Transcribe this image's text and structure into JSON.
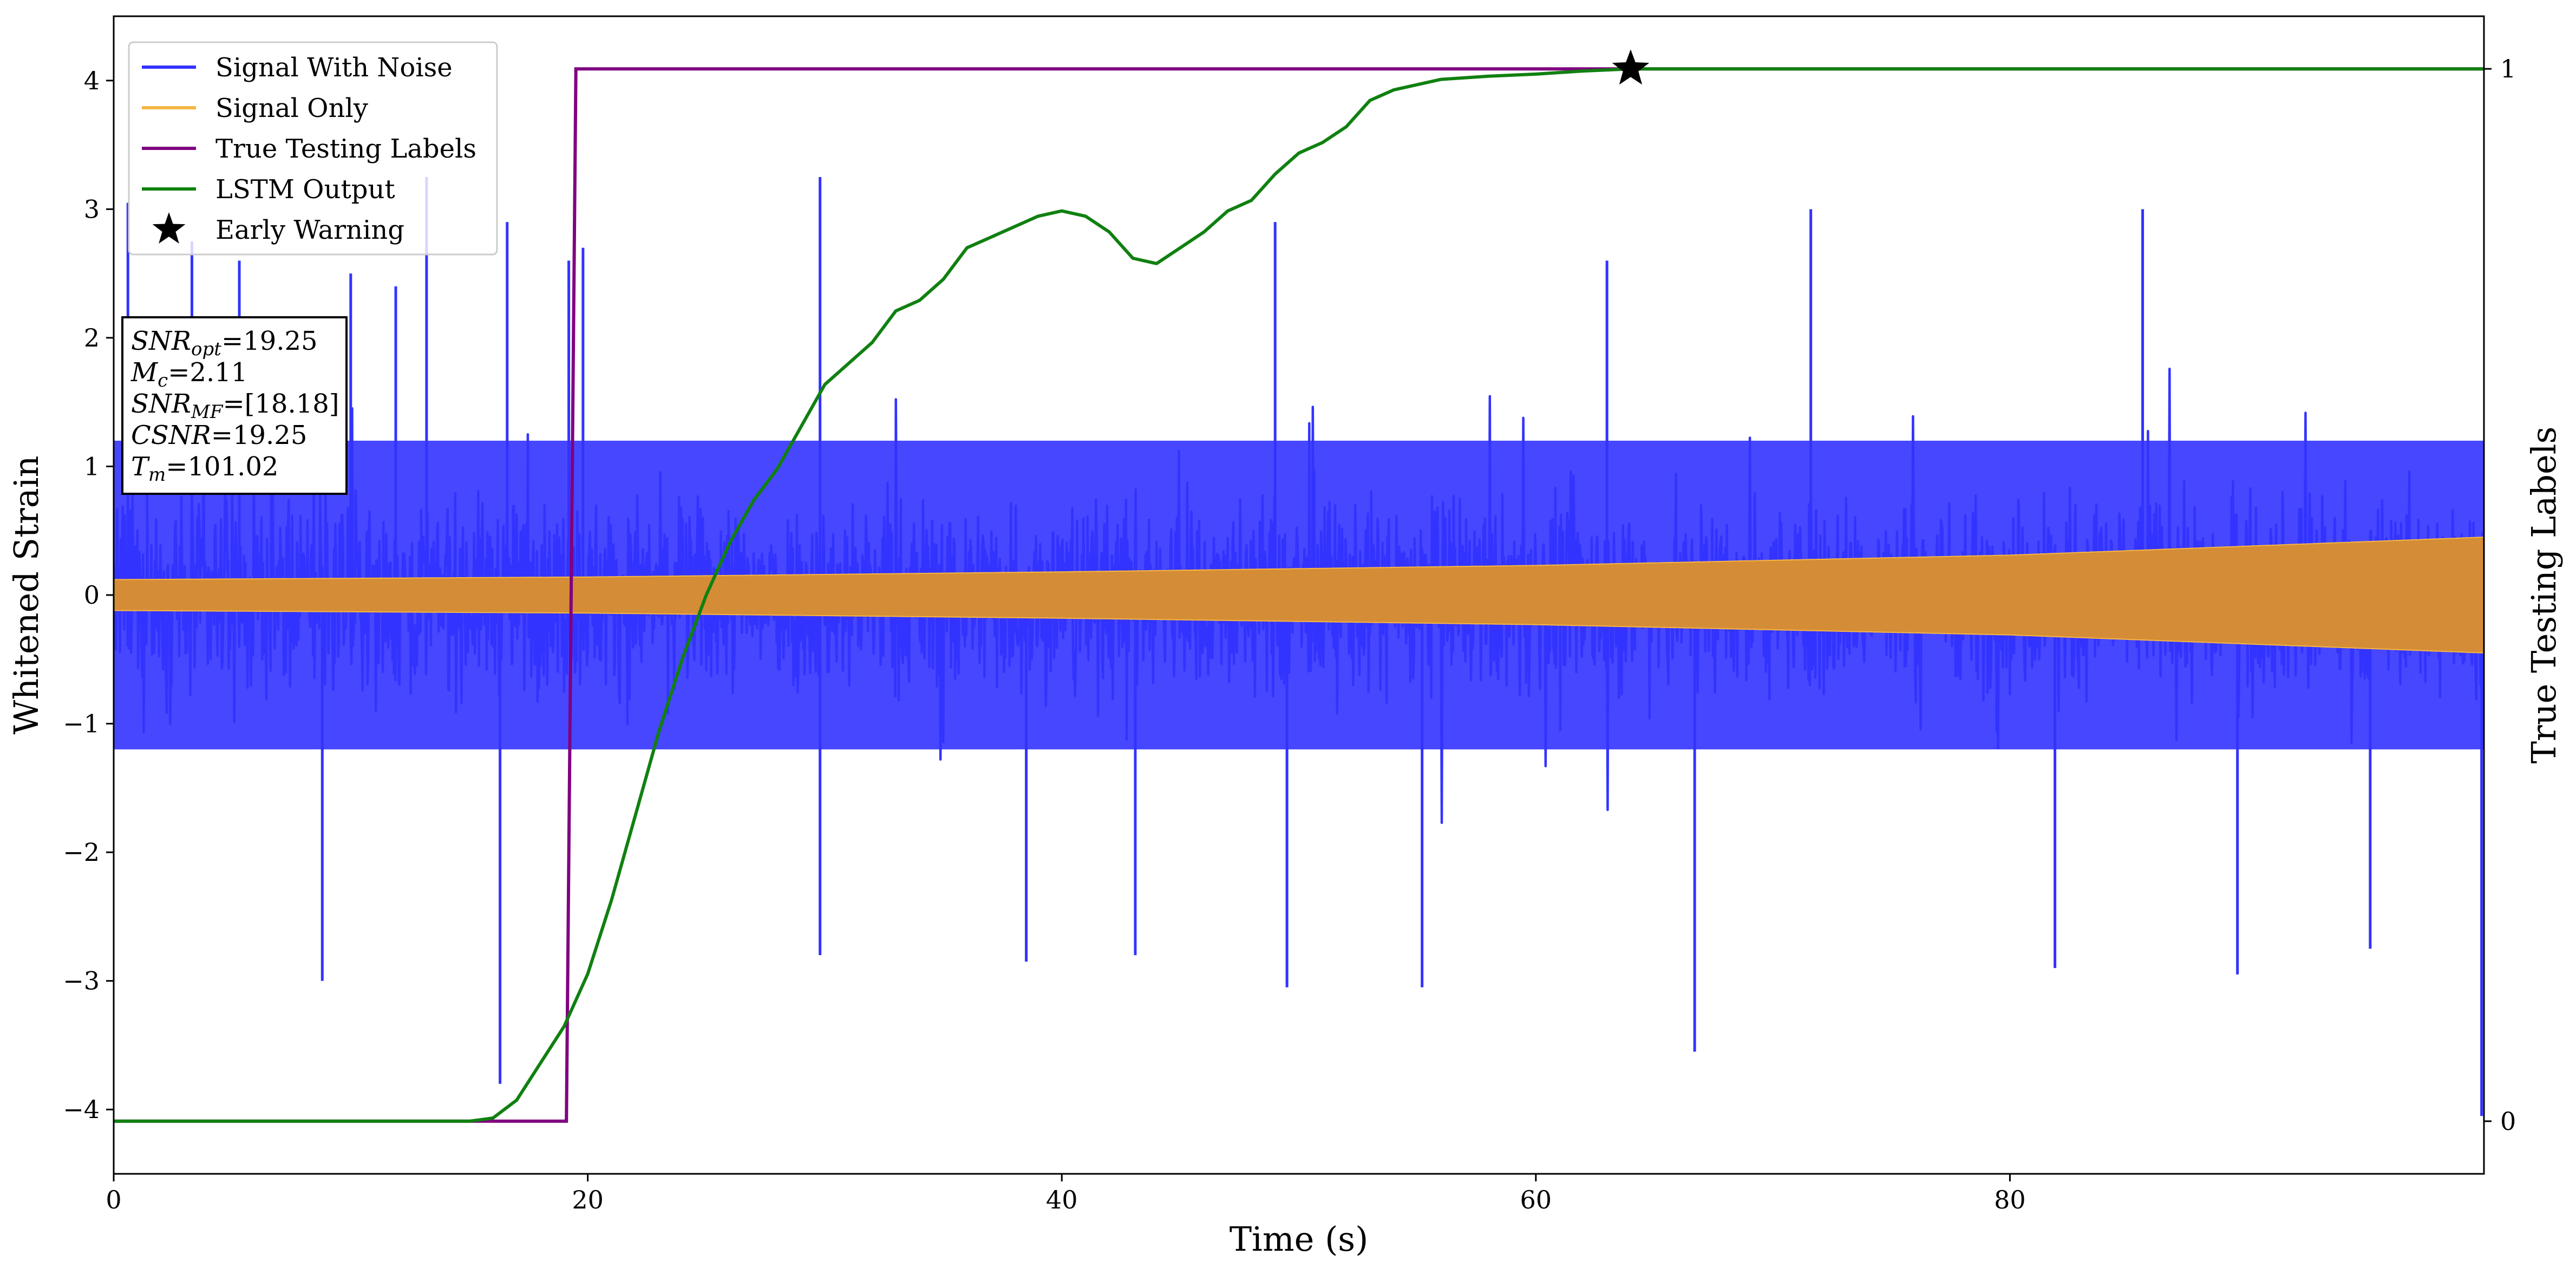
{
  "chart_data": {
    "type": "line",
    "xlabel": "Time (s)",
    "ylabel": "Whitened Strain",
    "ylabel_right": "True Testing Labels",
    "xlim": [
      0,
      100
    ],
    "ylim": [
      -4.5,
      4.5
    ],
    "ylim_right": [
      -0.05,
      1.05
    ],
    "xticks": [
      "0",
      "20",
      "40",
      "60",
      "80"
    ],
    "yticks": [
      "−4",
      "−3",
      "−2",
      "−1",
      "0",
      "1",
      "2",
      "3",
      "4"
    ],
    "yticks_right": [
      "0",
      "1"
    ],
    "grid": false,
    "legend_position": "top-left",
    "colors": {
      "signal_with_noise": "#3333ff",
      "signal_only": "#f5b642",
      "signal_overlap": "#d58c36",
      "true_labels": "#800080",
      "lstm_output": "#108010",
      "early_warning": "#000000"
    },
    "series": [
      {
        "name": "Signal With Noise",
        "kind": "noise-band",
        "axis": "left",
        "typical_envelope": [
          -1.6,
          1.6
        ],
        "spikes": [
          {
            "x": 0.6,
            "y": 3.05
          },
          {
            "x": 3.3,
            "y": 2.75
          },
          {
            "x": 5.3,
            "y": 2.6
          },
          {
            "x": 8.8,
            "y": -3.0
          },
          {
            "x": 10.0,
            "y": 2.5
          },
          {
            "x": 11.9,
            "y": 2.4
          },
          {
            "x": 13.2,
            "y": 3.25
          },
          {
            "x": 16.3,
            "y": -3.8
          },
          {
            "x": 16.6,
            "y": 2.9
          },
          {
            "x": 19.2,
            "y": 2.6
          },
          {
            "x": 19.8,
            "y": 2.7
          },
          {
            "x": 29.8,
            "y": -2.8
          },
          {
            "x": 29.8,
            "y": 3.25
          },
          {
            "x": 38.5,
            "y": -2.85
          },
          {
            "x": 43.1,
            "y": -2.8
          },
          {
            "x": 49.0,
            "y": 2.9
          },
          {
            "x": 49.5,
            "y": -3.05
          },
          {
            "x": 55.2,
            "y": -3.05
          },
          {
            "x": 63.0,
            "y": 2.6
          },
          {
            "x": 66.7,
            "y": -3.55
          },
          {
            "x": 71.6,
            "y": 3.0
          },
          {
            "x": 81.9,
            "y": -2.9
          },
          {
            "x": 85.6,
            "y": 3.0
          },
          {
            "x": 89.6,
            "y": -2.95
          },
          {
            "x": 95.2,
            "y": -2.75
          },
          {
            "x": 99.9,
            "y": -4.05
          }
        ]
      },
      {
        "name": "Signal Only",
        "kind": "chirp-band",
        "axis": "left",
        "x": [
          0,
          20,
          40,
          60,
          80,
          100
        ],
        "amplitude": [
          0.12,
          0.14,
          0.18,
          0.23,
          0.31,
          0.45
        ]
      },
      {
        "name": "True Testing Labels",
        "axis": "right",
        "x": [
          0,
          19.1,
          19.5,
          100
        ],
        "y": [
          0,
          0,
          1,
          1
        ]
      },
      {
        "name": "LSTM Output",
        "axis": "right",
        "x": [
          0,
          15,
          16,
          17,
          18,
          19,
          20,
          21,
          22,
          23,
          24,
          25,
          26,
          27,
          28,
          29,
          30,
          31,
          32,
          33,
          34,
          35,
          36,
          37,
          38,
          39,
          40,
          41,
          42,
          43,
          44,
          45,
          46,
          47,
          48,
          49,
          50,
          51,
          52,
          53,
          54,
          55,
          56,
          58,
          60,
          62,
          64,
          66,
          70,
          80,
          100
        ],
        "y": [
          0.0,
          0.0,
          0.003,
          0.02,
          0.055,
          0.09,
          0.14,
          0.21,
          0.29,
          0.37,
          0.44,
          0.5,
          0.55,
          0.59,
          0.62,
          0.66,
          0.7,
          0.72,
          0.74,
          0.77,
          0.78,
          0.8,
          0.83,
          0.84,
          0.85,
          0.86,
          0.865,
          0.86,
          0.845,
          0.82,
          0.815,
          0.83,
          0.845,
          0.865,
          0.875,
          0.9,
          0.92,
          0.93,
          0.945,
          0.97,
          0.98,
          0.985,
          0.99,
          0.993,
          0.995,
          0.998,
          1.0,
          1.0,
          1.0,
          1.0,
          1.0
        ]
      },
      {
        "name": "Early Warning",
        "kind": "marker",
        "axis": "right",
        "x": 64.0,
        "y": 1.0
      }
    ],
    "annotations": [
      {
        "label": "SNR",
        "sub": "opt",
        "value": "=19.25"
      },
      {
        "label": "M",
        "sub": "c",
        "value": "=2.11"
      },
      {
        "label": "SNR",
        "sub": "MF",
        "value": "=[18.18]"
      },
      {
        "label": "CSNR",
        "sub": "",
        "value": "=19.25"
      },
      {
        "label": "T",
        "sub": "m",
        "value": "=101.02"
      }
    ]
  }
}
